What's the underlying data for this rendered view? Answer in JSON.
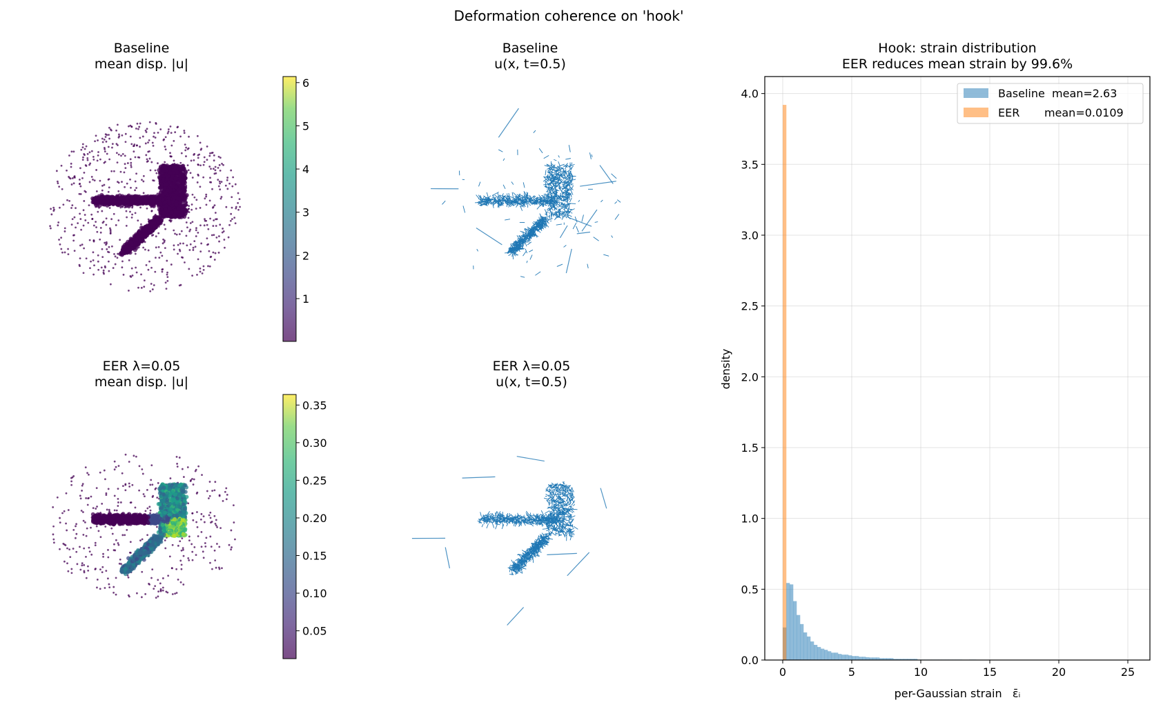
{
  "figure": {
    "suptitle": "Deformation coherence on 'hook'"
  },
  "panels": {
    "baseline_disp": {
      "title1": "Baseline",
      "title2": "mean disp. |u|",
      "colorbar": {
        "range": [
          0.01,
          6.14
        ],
        "ticks": [
          "1",
          "2",
          "3",
          "4",
          "5",
          "6"
        ],
        "tick_values": [
          1,
          2,
          3,
          4,
          5,
          6
        ],
        "colormap": "viridis"
      }
    },
    "baseline_quiver": {
      "title1": "Baseline",
      "title2": "u(x, t=0.5)"
    },
    "eer_disp": {
      "title1": "EER λ=0.05",
      "title2": "mean disp. |u|",
      "colorbar": {
        "range": [
          0.013,
          0.364
        ],
        "ticks": [
          "0.05",
          "0.10",
          "0.15",
          "0.20",
          "0.25",
          "0.30",
          "0.35"
        ],
        "tick_values": [
          0.05,
          0.1,
          0.15,
          0.2,
          0.25,
          0.3,
          0.35
        ],
        "colormap": "viridis"
      }
    },
    "eer_quiver": {
      "title1": "EER λ=0.05",
      "title2": "u(x, t=0.5)"
    }
  },
  "chart_data": [
    {
      "type": "bar",
      "kind": "histogram",
      "title": "Hook: strain distribution",
      "subtitle": "EER reduces mean strain by 99.6%",
      "xlabel": "per-Gaussian strain   ε̄ᵢ",
      "ylabel": "density",
      "xlim": [
        -1.3,
        26.6
      ],
      "ylim": [
        0,
        4.12
      ],
      "xticks": [
        "0",
        "5",
        "10",
        "15",
        "20",
        "25"
      ],
      "xtick_values": [
        0,
        5,
        10,
        15,
        20,
        25
      ],
      "yticks": [
        "0.0",
        "0.5",
        "1.0",
        "1.5",
        "2.0",
        "2.5",
        "3.0",
        "3.5",
        "4.0"
      ],
      "ytick_values": [
        0,
        0.5,
        1,
        1.5,
        2,
        2.5,
        3,
        3.5,
        4
      ],
      "grid": true,
      "legend_position": "top-right",
      "bin_width": 0.25,
      "series": [
        {
          "name": "Baseline  mean=2.63",
          "color": "#1f77b4",
          "alpha": 0.5,
          "bin_start": 0,
          "values": [
            0.23,
            0.544,
            0.534,
            0.416,
            0.318,
            0.254,
            0.195,
            0.166,
            0.131,
            0.107,
            0.092,
            0.08,
            0.072,
            0.062,
            0.052,
            0.052,
            0.043,
            0.038,
            0.038,
            0.033,
            0.028,
            0.028,
            0.023,
            0.023,
            0.02,
            0.018,
            0.018,
            0.018,
            0.013,
            0.013,
            0.013,
            0.013,
            0.008,
            0.008,
            0.008,
            0.008,
            0.008,
            0.008,
            0.008,
            0.003,
            0.003,
            0.003,
            0.003,
            0.003,
            0.003,
            0.003,
            0.003,
            0.003,
            0.003,
            0.003,
            0.003,
            0.003,
            0.002,
            0.001,
            0.003,
            0.003
          ]
        },
        {
          "name": "EER       mean=0.0109",
          "color": "#ff7f0e",
          "alpha": 0.5,
          "bin_start": 0,
          "values": [
            3.92
          ]
        }
      ]
    }
  ]
}
